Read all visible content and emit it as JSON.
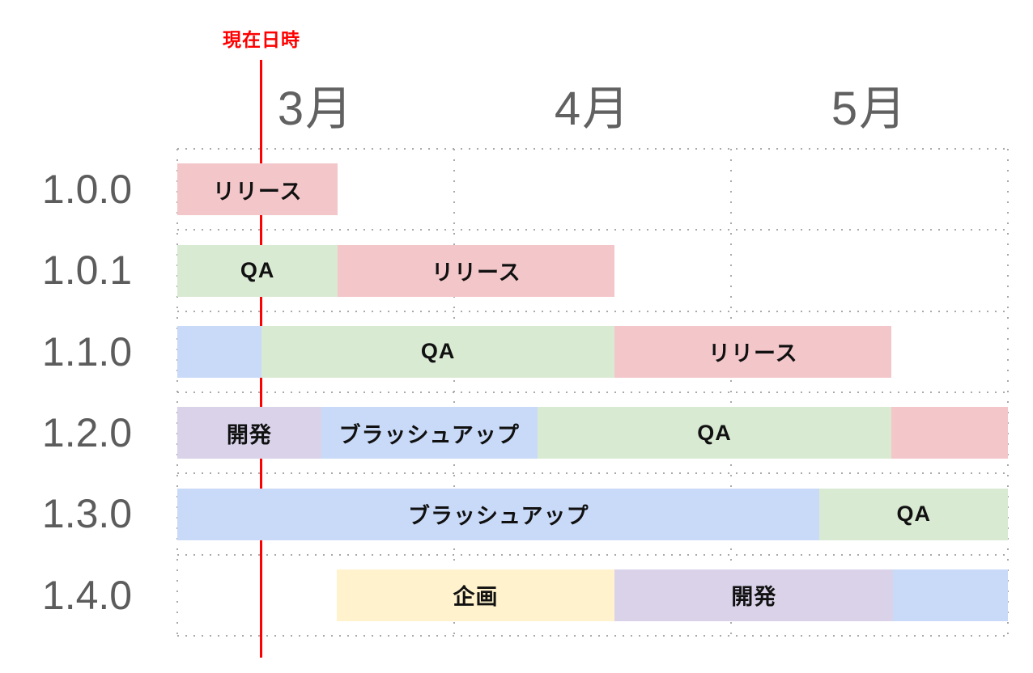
{
  "chart_data": {
    "type": "gantt",
    "title": "",
    "x_axis": {
      "tick_labels": [
        "3月",
        "4月",
        "5月"
      ],
      "unit": "month",
      "range_months": [
        0,
        3
      ],
      "grid": "dotted"
    },
    "y_axis": {
      "labels": [
        "1.0.0",
        "1.0.1",
        "1.1.0",
        "1.2.0",
        "1.3.0",
        "1.4.0"
      ]
    },
    "current_time_marker": {
      "label": "現在日時",
      "position": 0.304,
      "color": "#ff0000"
    },
    "phase_colors": {
      "release": "#f3c7ca",
      "qa": "#d9ead3",
      "dev": "#d9d2e9",
      "brushup": "#c9daf8",
      "plan": "#fff2cc"
    },
    "rows": [
      {
        "version": "1.0.0",
        "segments": [
          {
            "label": "リリース",
            "phase": "release",
            "start": 0,
            "end": 0.58
          }
        ]
      },
      {
        "version": "1.0.1",
        "segments": [
          {
            "label": "QA",
            "phase": "qa",
            "start": 0,
            "end": 0.58
          },
          {
            "label": "リリース",
            "phase": "release",
            "start": 0.58,
            "end": 1.58
          }
        ]
      },
      {
        "version": "1.1.0",
        "segments": [
          {
            "label": "",
            "phase": "brushup",
            "start": 0,
            "end": 0.304
          },
          {
            "label": "QA",
            "phase": "qa",
            "start": 0.304,
            "end": 1.58
          },
          {
            "label": "リリース",
            "phase": "release",
            "start": 1.58,
            "end": 2.58
          }
        ]
      },
      {
        "version": "1.2.0",
        "segments": [
          {
            "label": "開発",
            "phase": "dev",
            "start": 0,
            "end": 0.52
          },
          {
            "label": "ブラッシュアップ",
            "phase": "brushup",
            "start": 0.52,
            "end": 1.3
          },
          {
            "label": "QA",
            "phase": "qa",
            "start": 1.3,
            "end": 2.58
          },
          {
            "label": "",
            "phase": "release",
            "start": 2.58,
            "end": 3
          }
        ]
      },
      {
        "version": "1.3.0",
        "segments": [
          {
            "label": "ブラッシュアップ",
            "phase": "brushup",
            "start": 0,
            "end": 2.32
          },
          {
            "label": "QA",
            "phase": "qa",
            "start": 2.32,
            "end": 3
          }
        ]
      },
      {
        "version": "1.4.0",
        "segments": [
          {
            "label": "企画",
            "phase": "plan",
            "start": 0.575,
            "end": 1.58
          },
          {
            "label": "開発",
            "phase": "dev",
            "start": 1.58,
            "end": 2.585
          },
          {
            "label": "",
            "phase": "brushup",
            "start": 2.585,
            "end": 3
          }
        ]
      }
    ]
  }
}
